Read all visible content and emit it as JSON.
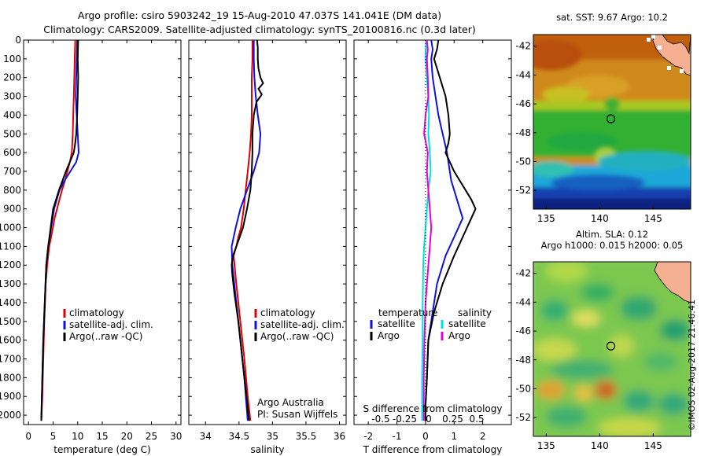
{
  "title": {
    "line1": "Argo profile: csiro 5903242_19 15-Aug-2010 47.037S 141.041E (DM data)",
    "line2": "Climatology: CARS2009. Satellite-adjusted climatology: synTS_20100816.nc (0.3d later)"
  },
  "colors": {
    "climatology": "#e00000",
    "satellite": "#1010e0",
    "argo": "#000000",
    "s_satellite": "#00e0e0",
    "s_argo": "#e000e0"
  },
  "chart_data": [
    {
      "type": "line",
      "id": "temperature",
      "xlabel": "temperature (deg C)",
      "xlim": [
        -1,
        31
      ],
      "xticks": [
        0,
        5,
        10,
        15,
        20,
        25,
        30
      ],
      "ylim": [
        0,
        2050
      ],
      "yticks": [
        0,
        100,
        200,
        300,
        400,
        500,
        600,
        700,
        800,
        900,
        1000,
        1100,
        1200,
        1300,
        1400,
        1500,
        1600,
        1700,
        1800,
        1900,
        2000
      ],
      "y_reversed": true,
      "legend": {
        "placement": "lower-right",
        "entries": [
          "climatology",
          "satellite-adj. clim.",
          "Argo(..raw -QC)"
        ]
      },
      "series": [
        {
          "name": "climatology",
          "color": "#e00000",
          "x": [
            9.5,
            9.4,
            9.3,
            9.2,
            9.1,
            9.0,
            8.8,
            8.4,
            7.9,
            7.4,
            6.8,
            6.3,
            5.8,
            5.3,
            4.6,
            4.2,
            3.8,
            3.5,
            3.2,
            3.0,
            2.8,
            2.6
          ],
          "y": [
            0,
            100,
            200,
            300,
            400,
            500,
            600,
            650,
            700,
            750,
            800,
            850,
            900,
            950,
            1050,
            1100,
            1200,
            1300,
            1500,
            1700,
            1900,
            2030
          ]
        },
        {
          "name": "satellite-adj. clim.",
          "color": "#1010e0",
          "x": [
            9.9,
            9.8,
            9.7,
            9.6,
            9.8,
            10.0,
            10.2,
            9.7,
            8.5,
            7.3,
            6.3,
            5.2,
            4.6,
            4.0,
            3.6,
            3.3,
            3.0,
            2.8,
            2.6
          ],
          "y": [
            0,
            100,
            200,
            300,
            400,
            500,
            600,
            650,
            700,
            750,
            800,
            900,
            1000,
            1100,
            1200,
            1400,
            1600,
            1800,
            2030
          ]
        },
        {
          "name": "Argo(..raw -QC)",
          "color": "#000000",
          "x": [
            10.1,
            10.0,
            10.1,
            10.0,
            9.9,
            9.7,
            9.5,
            9.2,
            8.4,
            7.6,
            6.9,
            6.2,
            5.6,
            5.0,
            4.5,
            4.0,
            3.6,
            3.3,
            3.0,
            2.8,
            2.6
          ],
          "y": [
            0,
            100,
            200,
            300,
            400,
            500,
            550,
            600,
            650,
            700,
            750,
            800,
            850,
            900,
            1000,
            1100,
            1200,
            1400,
            1600,
            1800,
            2030
          ]
        }
      ]
    },
    {
      "type": "line",
      "id": "salinity",
      "xlabel": "salinity",
      "xlim": [
        33.75,
        36.1
      ],
      "xticks": [
        34,
        34.5,
        35,
        35.5,
        36
      ],
      "ylim": [
        0,
        2050
      ],
      "y_reversed": true,
      "legend": {
        "placement": "lower-right",
        "entries": [
          "climatology",
          "satellite-adj. clim.",
          "Argo(..raw -QC)"
        ]
      },
      "annotation": [
        "Argo Australia",
        "PI: Susan Wijffels"
      ],
      "series": [
        {
          "name": "climatology",
          "color": "#e00000",
          "x": [
            34.7,
            34.7,
            34.69,
            34.69,
            34.69,
            34.68,
            34.66,
            34.63,
            34.6,
            34.57,
            34.53,
            34.49,
            34.46,
            34.42,
            34.46,
            34.52,
            34.58,
            34.63,
            34.67
          ],
          "y": [
            0,
            100,
            200,
            300,
            400,
            500,
            600,
            700,
            800,
            900,
            1000,
            1050,
            1100,
            1150,
            1300,
            1500,
            1700,
            1900,
            2030
          ]
        },
        {
          "name": "satellite-adj. clim.",
          "color": "#1010e0",
          "x": [
            34.72,
            34.72,
            34.73,
            34.75,
            34.78,
            34.82,
            34.8,
            34.72,
            34.62,
            34.52,
            34.45,
            34.39,
            34.4,
            34.46,
            34.52,
            34.58,
            34.63
          ],
          "y": [
            0,
            100,
            200,
            300,
            400,
            500,
            600,
            700,
            800,
            900,
            1000,
            1100,
            1200,
            1400,
            1600,
            1800,
            2030
          ]
        },
        {
          "name": "Argo(..raw -QC)",
          "color": "#000000",
          "x": [
            34.77,
            34.78,
            34.78,
            34.79,
            34.82,
            34.86,
            34.79,
            34.84,
            34.76,
            34.72,
            34.7,
            34.7,
            34.69,
            34.67,
            34.62,
            34.56,
            34.51,
            34.46,
            34.41,
            34.39,
            34.4,
            34.43,
            34.49,
            34.55,
            34.61,
            34.65
          ],
          "y": [
            0,
            40,
            100,
            150,
            200,
            230,
            260,
            290,
            330,
            400,
            500,
            600,
            700,
            800,
            900,
            1000,
            1050,
            1100,
            1150,
            1200,
            1250,
            1350,
            1500,
            1700,
            1900,
            2030
          ]
        }
      ]
    },
    {
      "type": "line",
      "id": "difference",
      "xlabel": "T difference from climatology",
      "xlabel_top": "S difference from climatology",
      "xlim": [
        -2.5,
        3.0
      ],
      "xticks": [
        -2,
        -1,
        0,
        1,
        2
      ],
      "xticks_top": [
        "-0.5",
        "-0.25",
        "0",
        "0.25",
        "0.5"
      ],
      "ylim": [
        0,
        2050
      ],
      "y_reversed": true,
      "legend": {
        "placement": "lower-right",
        "temperature_header": "temperature",
        "salinity_header": "salinity",
        "entries": [
          "satellite",
          "Argo",
          "satellite",
          "Argo"
        ]
      },
      "series": [
        {
          "name": "temperature satellite",
          "color": "#1010e0",
          "x": [
            0.2,
            0.25,
            0.2,
            0.25,
            0.35,
            0.45,
            0.6,
            0.75,
            0.85,
            0.9,
            1.0,
            1.1,
            1.2,
            1.3,
            1.0,
            0.7,
            0.4,
            0.25,
            0.1,
            0.05,
            0.0,
            0.0
          ],
          "y": [
            0,
            50,
            100,
            200,
            300,
            400,
            500,
            600,
            700,
            750,
            800,
            850,
            900,
            950,
            1050,
            1150,
            1300,
            1450,
            1600,
            1800,
            1950,
            2030
          ]
        },
        {
          "name": "temperature Argo",
          "color": "#000000",
          "x": [
            0.45,
            0.4,
            0.3,
            0.5,
            0.7,
            0.8,
            0.85,
            0.8,
            0.7,
            0.85,
            1.0,
            1.2,
            1.4,
            1.6,
            1.75,
            1.6,
            1.3,
            1.0,
            0.6,
            0.3,
            0.1,
            0.05,
            0.0,
            0.0
          ],
          "y": [
            0,
            50,
            100,
            200,
            300,
            400,
            500,
            550,
            600,
            650,
            700,
            750,
            800,
            850,
            900,
            950,
            1050,
            1150,
            1300,
            1450,
            1600,
            1800,
            1950,
            2030
          ]
        },
        {
          "name": "salinity satellite",
          "color": "#00e0e0",
          "x": [
            0.02,
            0.0,
            0.05,
            0.1,
            0.12,
            0.1,
            0.15,
            0.18,
            0.1,
            0.05,
            0.0,
            -0.05,
            -0.08,
            -0.1,
            -0.1,
            -0.12,
            -0.12
          ],
          "y": [
            0,
            100,
            200,
            300,
            400,
            500,
            600,
            700,
            800,
            900,
            1000,
            1100,
            1200,
            1400,
            1600,
            1800,
            2030
          ]
        },
        {
          "name": "salinity Argo",
          "color": "#e000e0",
          "x": [
            0.05,
            0.08,
            0.05,
            0.08,
            0.1,
            0.0,
            -0.05,
            0.08,
            0.05,
            0.1,
            0.15,
            0.2,
            0.15,
            0.1,
            0.05,
            0.0,
            -0.02,
            -0.04,
            -0.06,
            -0.06
          ],
          "y": [
            0,
            50,
            100,
            200,
            300,
            400,
            500,
            600,
            700,
            800,
            900,
            1000,
            1100,
            1200,
            1300,
            1400,
            1500,
            1600,
            1800,
            2030
          ]
        }
      ]
    },
    {
      "type": "heatmap",
      "id": "sst-map",
      "title": "sat. SST: 9.67 Argo: 10.2",
      "xlim": [
        133.8,
        148.5
      ],
      "ylim": [
        -53.3,
        -41.2
      ],
      "xticks": [
        135,
        140,
        145
      ],
      "yticks": [
        -42,
        -44,
        -46,
        -48,
        -50,
        -52
      ],
      "marker": {
        "lon": 141.04,
        "lat": -47.04
      }
    },
    {
      "type": "heatmap",
      "id": "sla-map",
      "title_line1": "Altim. SLA: 0.12",
      "title_line2": "Argo h1000: 0.015 h2000: 0.05",
      "xlim": [
        133.8,
        148.5
      ],
      "ylim": [
        -53.3,
        -41.2
      ],
      "xticks": [
        135,
        140,
        145
      ],
      "yticks": [
        -42,
        -44,
        -46,
        -48,
        -50,
        -52
      ],
      "marker": {
        "lon": 141.04,
        "lat": -47.04
      }
    }
  ],
  "stamp": "©IMOS 02-Aug-2017 21:46:41"
}
